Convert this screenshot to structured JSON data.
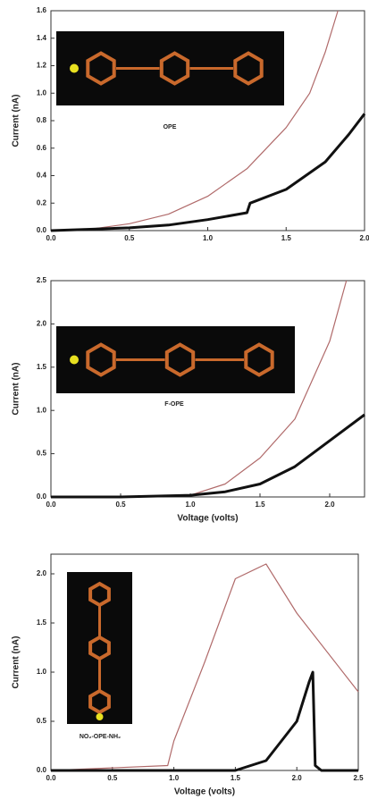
{
  "chart_data": [
    {
      "type": "line",
      "ylabel": "Current (nA)",
      "annotation": "OPE",
      "xlim": [
        0,
        2.0
      ],
      "ylim": [
        0,
        1.6
      ],
      "xticks": [
        {
          "value": 0,
          "label": "0.0"
        },
        0.5,
        {
          "value": 1,
          "label": "1.0"
        },
        1.5,
        {
          "value": 2,
          "label": "2.0"
        }
      ],
      "yticks": [
        {
          "value": 0,
          "label": "0.0"
        },
        0.2,
        0.4,
        0.6,
        0.8,
        {
          "value": 1,
          "label": "1.0"
        },
        1.2,
        1.4,
        1.6
      ],
      "series": [
        {
          "color": "#b06a6a",
          "x": [
            0,
            0.25,
            0.5,
            0.75,
            1.0,
            1.25,
            1.5,
            1.65,
            1.75,
            1.83
          ],
          "values": [
            0,
            0.01,
            0.05,
            0.12,
            0.25,
            0.45,
            0.75,
            1.0,
            1.3,
            1.6
          ]
        },
        {
          "color": "#111111",
          "x": [
            0,
            0.25,
            0.5,
            0.75,
            1.0,
            1.25,
            1.27,
            1.5,
            1.75,
            1.9,
            2.0
          ],
          "values": [
            0,
            0.01,
            0.02,
            0.04,
            0.08,
            0.13,
            0.2,
            0.3,
            0.5,
            0.7,
            0.85
          ]
        }
      ]
    },
    {
      "type": "line",
      "ylabel": "Current (nA)",
      "xlabel": "Voltage (volts)",
      "annotation": "F-OPE",
      "xlim": [
        0,
        2.25
      ],
      "ylim": [
        0,
        2.5
      ],
      "xticks": [
        {
          "value": 0,
          "label": "0.0"
        },
        0.5,
        {
          "value": 1,
          "label": "1.0"
        },
        1.5,
        {
          "value": 2,
          "label": "2.0"
        }
      ],
      "yticks": [
        {
          "value": 0,
          "label": "0.0"
        },
        0.5,
        {
          "value": 1,
          "label": "1.0"
        },
        1.5,
        {
          "value": 2,
          "label": "2.0"
        },
        2.5
      ],
      "series": [
        {
          "color": "#b06a6a",
          "x": [
            0,
            0.5,
            1.0,
            1.25,
            1.5,
            1.75,
            2.0,
            2.12
          ],
          "values": [
            0,
            0.0,
            0.02,
            0.15,
            0.45,
            0.9,
            1.8,
            2.5
          ]
        },
        {
          "color": "#111111",
          "x": [
            0,
            0.5,
            1.0,
            1.25,
            1.5,
            1.75,
            2.0,
            2.25
          ],
          "values": [
            0,
            0.0,
            0.02,
            0.06,
            0.15,
            0.35,
            0.65,
            0.95
          ]
        }
      ]
    },
    {
      "type": "line",
      "ylabel": "Current (nA)",
      "xlabel": "Voltage (volts)",
      "annotation": "NO₂-OPE-NH₂",
      "xlim": [
        0,
        2.5
      ],
      "ylim": [
        0,
        2.2
      ],
      "xticks": [
        {
          "value": 0,
          "label": "0.0"
        },
        0.5,
        {
          "value": 1,
          "label": "1.0"
        },
        1.5,
        {
          "value": 2,
          "label": "2.0"
        },
        2.5
      ],
      "yticks": [
        {
          "value": 0,
          "label": "0.0"
        },
        0.5,
        {
          "value": 1,
          "label": "1.0"
        },
        1.5,
        {
          "value": 2,
          "label": "2.0"
        }
      ],
      "series": [
        {
          "color": "#b06a6a",
          "x": [
            0,
            0.95,
            1.0,
            1.25,
            1.5,
            1.75,
            2.0,
            2.5
          ],
          "values": [
            0,
            0.05,
            0.3,
            1.1,
            1.95,
            2.1,
            1.6,
            0.8
          ]
        },
        {
          "color": "#111111",
          "x": [
            0,
            1.5,
            1.75,
            2.0,
            2.1,
            2.13,
            2.15,
            2.2,
            2.5
          ],
          "values": [
            0,
            0,
            0.1,
            0.5,
            0.9,
            1.0,
            0.05,
            0,
            0
          ]
        }
      ]
    }
  ]
}
